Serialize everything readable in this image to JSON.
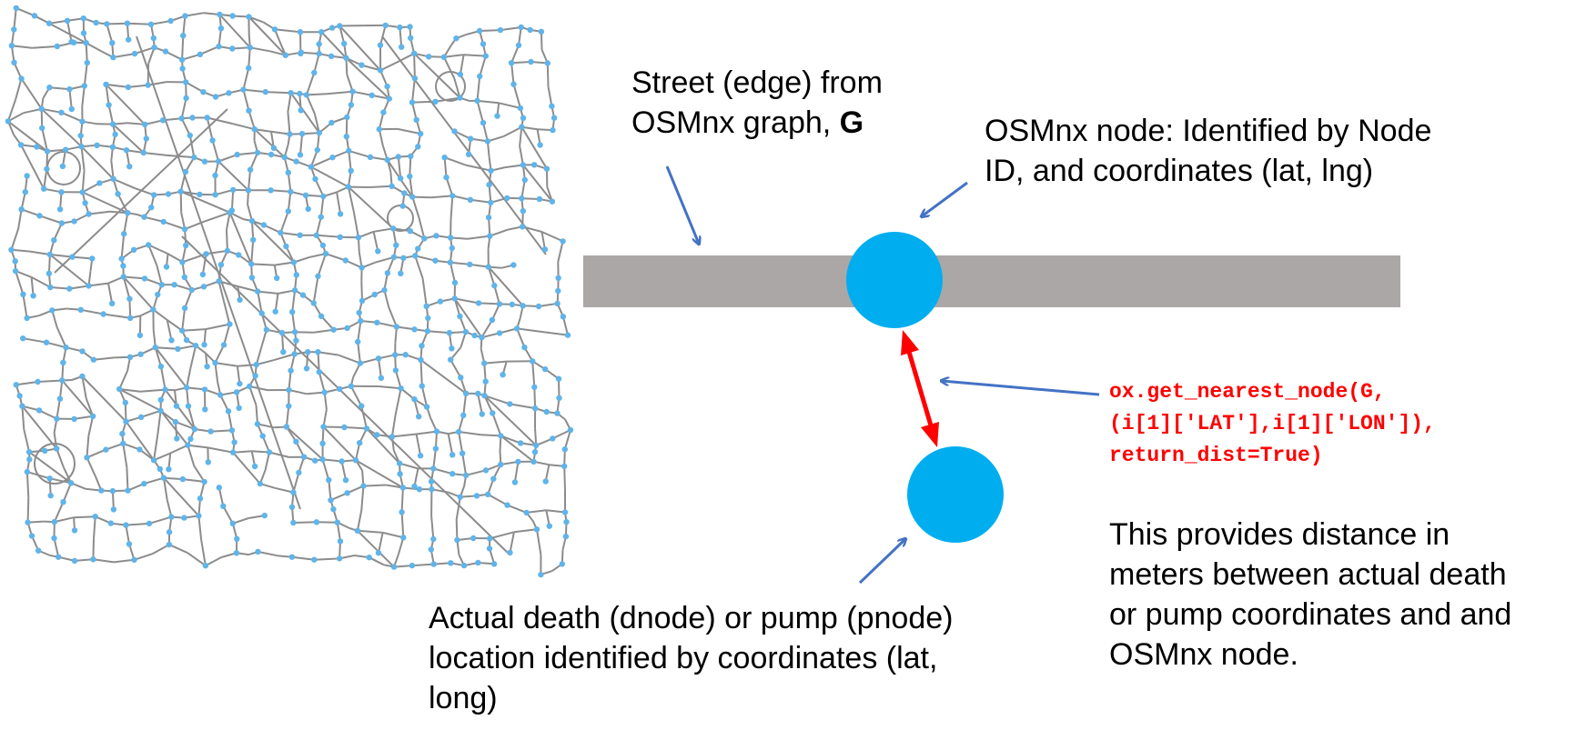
{
  "labels": {
    "street_edge": {
      "line1": "Street (edge) from",
      "line2_prefix": "OSMnx graph, ",
      "line2_bold": "G"
    },
    "osmnx_node": {
      "line1": "OSMnx node: Identified by Node",
      "line2": "ID, and coordinates (lat, lng)"
    },
    "actual_location": {
      "line1": "Actual death (dnode) or pump (pnode)",
      "line2": "location identified by coordinates (lat,",
      "line3": "long)"
    },
    "distance_note": {
      "line1": "This provides distance in",
      "line2": "meters between actual death",
      "line3": "or pump coordinates and and",
      "line4": "OSMnx node."
    }
  },
  "code": {
    "line1": "ox.get_nearest_node(G,",
    "line2": "(i[1]['LAT'],i[1]['LON']),",
    "line3": "return_dist=True)"
  },
  "colors": {
    "street": "#aaa7a6",
    "node": "#00aeef",
    "annotation_arrow": "#4472c4",
    "distance_arrow": "#ff0000",
    "code_text": "#ff0000",
    "map_edge": "#8c8c8c",
    "map_node": "#5fb4ea"
  },
  "icons": {
    "street_map": "street-network-map",
    "node_marker": "circle"
  }
}
